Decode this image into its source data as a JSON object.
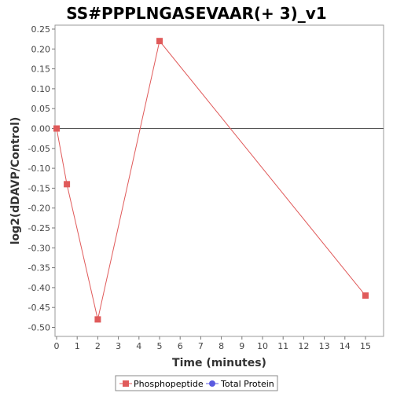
{
  "chart_data": {
    "type": "line",
    "title": "SS#PPPLNGASEVAAR(+ 3)_v1",
    "xlabel": "Time (minutes)",
    "ylabel": "log2(dDAVP/Control)",
    "xlim": [
      0,
      16
    ],
    "ylim": [
      -0.52,
      0.26
    ],
    "x_ticks": [
      0,
      1,
      2,
      3,
      4,
      5,
      6,
      7,
      8,
      9,
      10,
      11,
      12,
      13,
      14,
      15
    ],
    "y_ticks": [
      0.25,
      0.2,
      0.15,
      0.1,
      0.05,
      0.0,
      -0.05,
      -0.1,
      -0.15,
      -0.2,
      -0.25,
      -0.3,
      -0.35,
      -0.4,
      -0.45,
      -0.5
    ],
    "grid": false,
    "legend_position": "bottom",
    "series": [
      {
        "name": "Phosphopeptide",
        "color": "#e05a5a",
        "marker": "square",
        "x": [
          0,
          0.5,
          2,
          5,
          15
        ],
        "y": [
          0.0,
          -0.14,
          -0.48,
          0.22,
          -0.42
        ]
      },
      {
        "name": "Total Protein",
        "color": "#5a5ae0",
        "marker": "circle",
        "x": [],
        "y": []
      }
    ]
  }
}
